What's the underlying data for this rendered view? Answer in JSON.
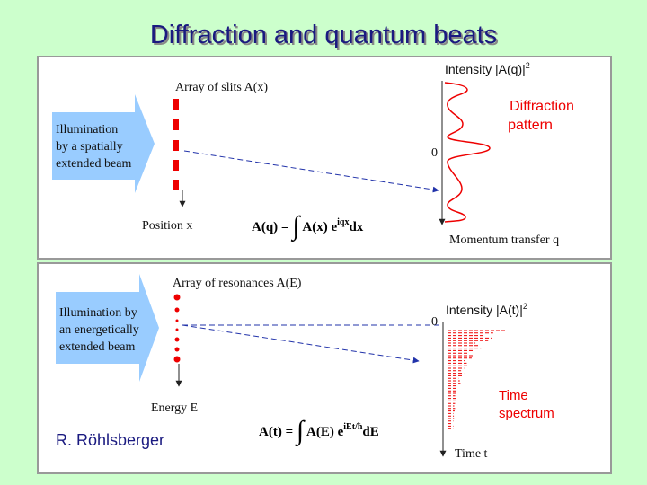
{
  "header": {
    "title": "Diffraction and quantum beats"
  },
  "panels": [
    {
      "array_label": "Array of slits A(x)",
      "illumination": [
        "Illumination",
        "by a spatially",
        "extended beam"
      ],
      "position_label": "Position x",
      "formula": {
        "lhs": "A(q) =",
        "integral": "∫",
        "body": "A(x) e",
        "exponent": "iqx",
        "tail": "dx"
      },
      "intensity": {
        "text": "Intensity |A(q)|",
        "superscript": "2"
      },
      "pattern_label": [
        "Diffraction",
        "pattern"
      ],
      "zero": "0",
      "axis_label": "Momentum transfer q"
    },
    {
      "array_label": "Array of resonances A(E)",
      "illumination": [
        "Illumination by",
        "an energetically",
        "extended beam"
      ],
      "position_label": "Energy E",
      "formula": {
        "lhs": "A(t) =",
        "integral": "∫",
        "body": "A(E) e",
        "exponent": "iEt/ħ",
        "tail": "dE"
      },
      "intensity": {
        "text": "Intensity |A(t)|",
        "superscript": "2"
      },
      "pattern_label": [
        "Time",
        "spectrum"
      ],
      "zero": "0",
      "axis_label": "Time t"
    }
  ],
  "footer": {
    "author": "R. Röhlsberger"
  }
}
